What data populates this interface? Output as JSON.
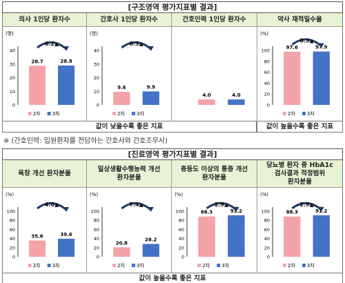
{
  "structure": {
    "title": "[구조영역 평가지표별 결과]",
    "low_better": "값이 낮을수록 좋은 지표",
    "high_better": "값이 높을수록 좋은 지표",
    "footnote": "※ (간호인력: 입원환자를 전담하는 간호사와 간호조무사)"
  },
  "process": {
    "title": "[진료영역 평가지표별 결과]",
    "high_better": "값이 높을수록 좋은 지표"
  },
  "colors": {
    "round2": "#f4a3a8",
    "round3": "#4472c4",
    "header_bg": "#e8f3d6"
  },
  "chart_data": [
    {
      "type": "bar",
      "title": "의사 1인당 환자수",
      "unit": "(명)",
      "ylim": [
        0,
        40
      ],
      "ticks": [
        0,
        10,
        20,
        30,
        40
      ],
      "categories": [
        "2차",
        "3차"
      ],
      "values": [
        28.7,
        28.9
      ],
      "change": "0.2▲",
      "legend": [
        "2차",
        "3차"
      ]
    },
    {
      "type": "bar",
      "title": "간호사 1인당 환자수",
      "unit": "(명)",
      "ylim": [
        0,
        40
      ],
      "ticks": [
        0,
        10,
        20,
        30,
        40
      ],
      "categories": [
        "2차",
        "3차"
      ],
      "values": [
        9.6,
        9.9
      ],
      "change": "0.3▲",
      "legend": [
        "2차",
        "3차"
      ]
    },
    {
      "type": "bar",
      "title": "간호인력 1인당 환자수",
      "unit": "",
      "ylim": [
        0,
        40
      ],
      "ticks": [],
      "categories": [
        "2차",
        "3차"
      ],
      "values": [
        4.0,
        4.0
      ],
      "change": "",
      "legend": []
    },
    {
      "type": "bar",
      "title": "약사 재적일수율",
      "unit": "(%)",
      "ylim": [
        0,
        100
      ],
      "ticks": [
        0,
        20,
        40,
        60,
        80,
        100
      ],
      "categories": [
        "2차",
        "3차"
      ],
      "values": [
        97.6,
        97.9
      ],
      "change": "0.3▲",
      "legend": [
        "2차",
        "3차"
      ]
    },
    {
      "type": "bar",
      "title": "욕창 개선 환자분율",
      "unit": "(%)",
      "ylim": [
        0,
        100
      ],
      "ticks": [
        0,
        20,
        40,
        60,
        80,
        100
      ],
      "categories": [
        "2차",
        "3차"
      ],
      "values": [
        35.6,
        39.6
      ],
      "change": "4.0▲",
      "legend": [
        "2차",
        "3차"
      ]
    },
    {
      "type": "bar",
      "title": "일상생활수행능력 개선\n환자분율",
      "unit": "(%)",
      "ylim": [
        0,
        100
      ],
      "ticks": [
        0,
        20,
        40,
        60,
        80,
        100
      ],
      "categories": [
        "2차",
        "3차"
      ],
      "values": [
        20.8,
        28.2
      ],
      "change": "7.4▲",
      "legend": [
        "2차",
        "3차"
      ]
    },
    {
      "type": "bar",
      "title": "중등도 이상의 통증 개선\n환자분율",
      "unit": "(%)",
      "ylim": [
        0,
        100
      ],
      "ticks": [
        0,
        20,
        40,
        60,
        80,
        100
      ],
      "categories": [
        "2차",
        "3차"
      ],
      "values": [
        88.3,
        91.2
      ],
      "change": "2.9▲",
      "legend": [
        "2차",
        "3차"
      ]
    },
    {
      "type": "bar",
      "title": "당뇨병 환자 중 HbA1c\n검사결과 적정범위\n환자분율",
      "unit": "(%)",
      "ylim": [
        0,
        100
      ],
      "ticks": [
        0,
        20,
        40,
        60,
        80,
        100
      ],
      "categories": [
        "2차",
        "3차"
      ],
      "values": [
        88.3,
        91.2
      ],
      "change": "2.9▲",
      "legend": [
        "2차",
        "3차"
      ]
    }
  ]
}
